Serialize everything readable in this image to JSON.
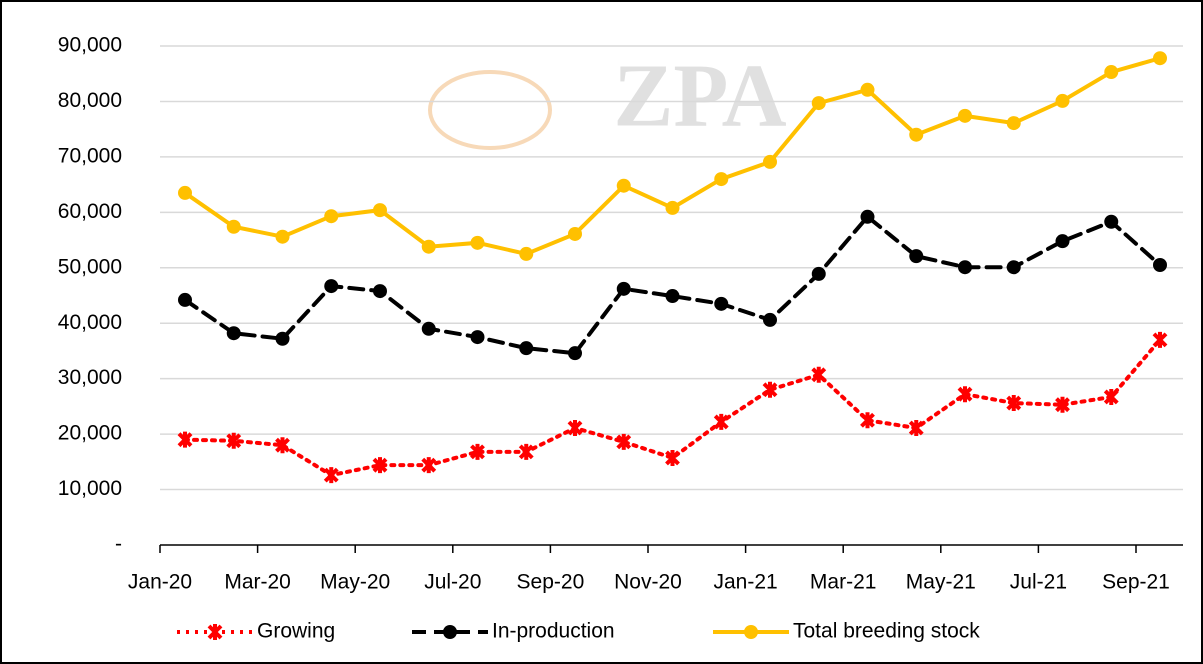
{
  "chart_data": {
    "type": "line",
    "watermark": "ZPA",
    "categories": [
      "Jan-20",
      null,
      "Mar-20",
      null,
      "May-20",
      null,
      "Jul-20",
      null,
      "Sep-20",
      null,
      "Nov-20",
      null,
      "Jan-21",
      null,
      "Mar-21",
      null,
      "May-21",
      null,
      "Jul-21",
      null,
      "Sep-21"
    ],
    "series": [
      {
        "name": "Growing",
        "color": "#ff0000",
        "style": "dotted",
        "marker": "star",
        "values": [
          19000,
          18800,
          18000,
          12600,
          14400,
          14400,
          16800,
          16800,
          21100,
          18600,
          15700,
          22200,
          28000,
          30700,
          22500,
          21100,
          27200,
          25600,
          25300,
          26700,
          37000
        ]
      },
      {
        "name": "In-production",
        "color": "#000000",
        "style": "dashed",
        "marker": "circle",
        "values": [
          44200,
          38200,
          37200,
          46700,
          45800,
          39000,
          37500,
          35500,
          34600,
          46200,
          44900,
          43500,
          40600,
          48900,
          59200,
          52100,
          50100,
          50100,
          54800,
          58300,
          50500
        ]
      },
      {
        "name": "Total breeding stock",
        "color": "#ffc000",
        "style": "solid",
        "marker": "circle",
        "values": [
          63500,
          57400,
          55600,
          59300,
          60400,
          53800,
          54500,
          52500,
          56100,
          64800,
          60800,
          66000,
          69100,
          79700,
          82100,
          74000,
          77400,
          76100,
          80100,
          85300,
          87800
        ]
      }
    ],
    "ylim": [
      0,
      90000
    ],
    "yticks": [
      {
        "value": 0,
        "label": "-"
      },
      {
        "value": 10000,
        "label": "10,000"
      },
      {
        "value": 20000,
        "label": "20,000"
      },
      {
        "value": 30000,
        "label": "30,000"
      },
      {
        "value": 40000,
        "label": "40,000"
      },
      {
        "value": 50000,
        "label": "50,000"
      },
      {
        "value": 60000,
        "label": "60,000"
      },
      {
        "value": 70000,
        "label": "70,000"
      },
      {
        "value": 80000,
        "label": "80,000"
      },
      {
        "value": 90000,
        "label": "90,000"
      }
    ],
    "grid": true,
    "legend": "bottom"
  }
}
